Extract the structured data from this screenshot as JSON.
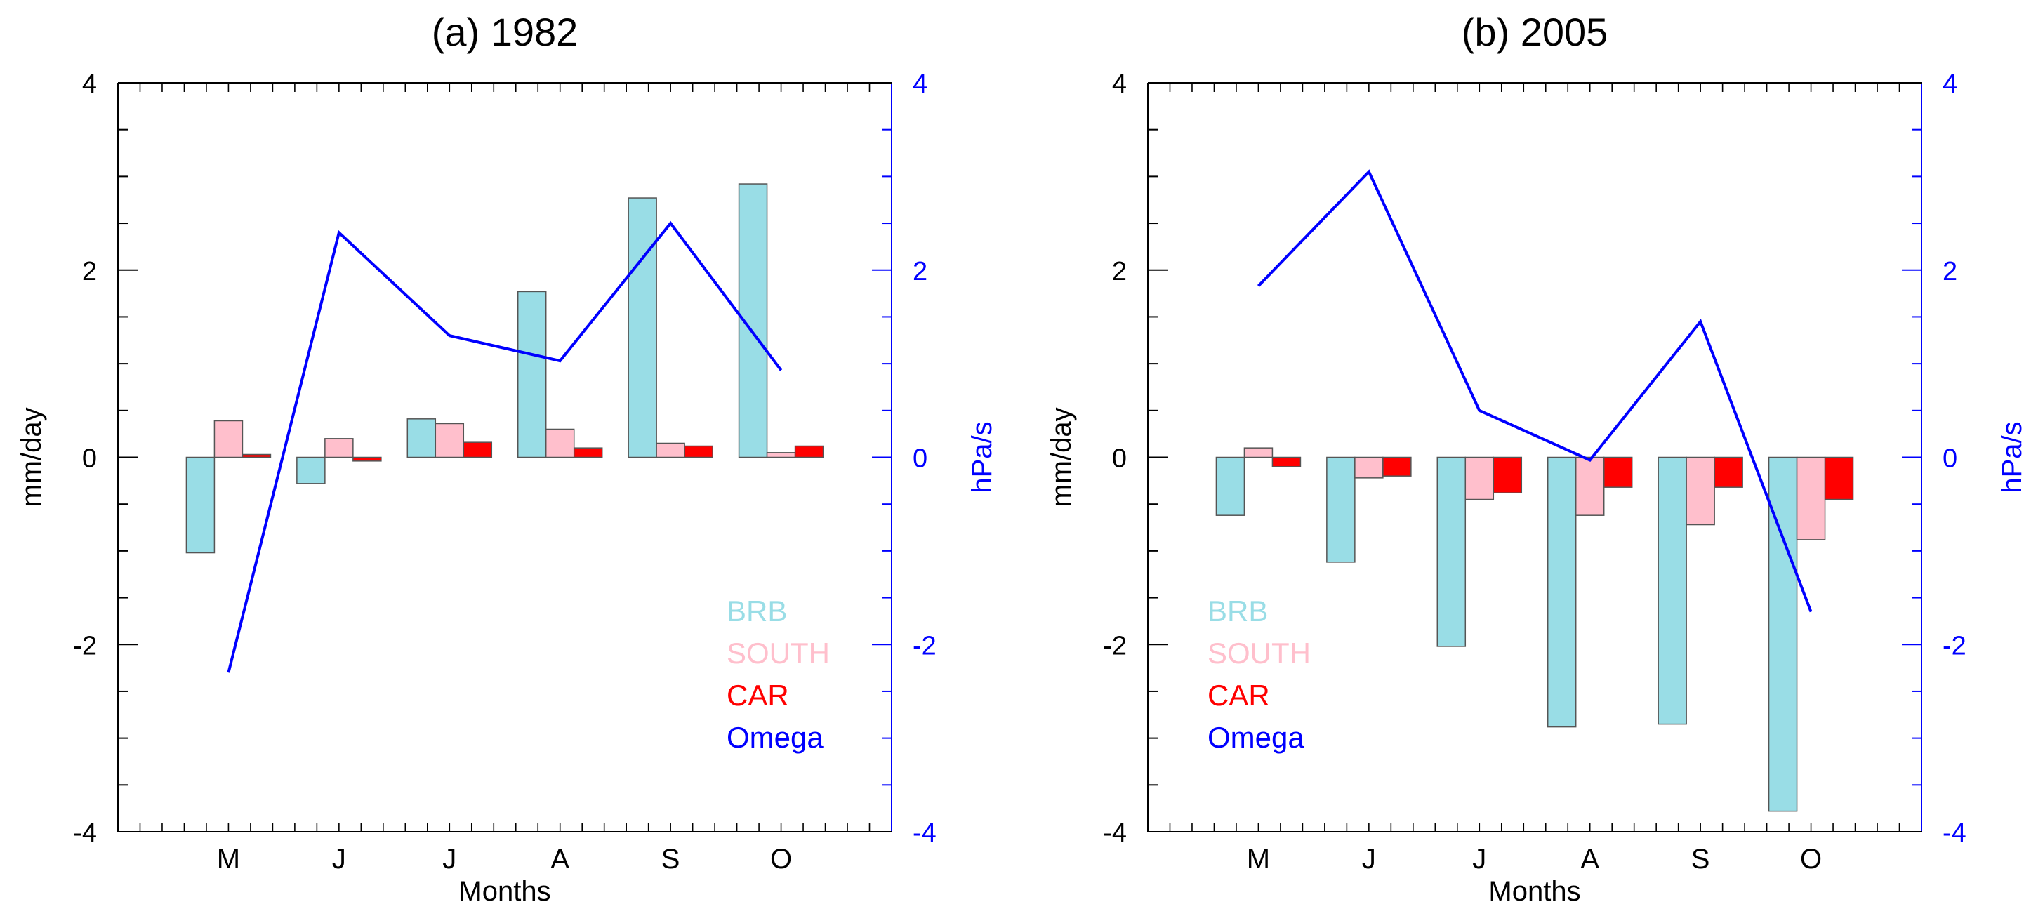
{
  "figure": {
    "colors": {
      "BRB": "#99dde6",
      "SOUTH": "#ffbfcc",
      "CAR": "#ff0000",
      "Omega": "#0000ff",
      "axis": "#000000",
      "bar_edge": "#555555",
      "right_axis": "#0000ff"
    },
    "legend_labels": [
      "BRB",
      "SOUTH",
      "CAR",
      "Omega"
    ]
  },
  "chart_data": [
    {
      "type": "bar",
      "title": "(a) 1982",
      "xlabel": "Months",
      "ylabel": "mm/day",
      "ylabel_right": "hPa/s",
      "categories": [
        "M",
        "J",
        "J",
        "A",
        "S",
        "O"
      ],
      "ylim": [
        -4,
        4
      ],
      "yticks": [
        "4",
        "2",
        "0",
        "-2",
        "-4"
      ],
      "ylim_right": [
        -4,
        4
      ],
      "yticks_right": [
        "4",
        "2",
        "0",
        "-2",
        "-4"
      ],
      "series": [
        {
          "name": "BRB",
          "values": [
            -1.02,
            -0.28,
            0.41,
            1.77,
            2.77,
            2.92
          ]
        },
        {
          "name": "SOUTH",
          "values": [
            0.39,
            0.2,
            0.36,
            0.3,
            0.15,
            0.05
          ]
        },
        {
          "name": "CAR",
          "values": [
            0.03,
            -0.04,
            0.16,
            0.1,
            0.12,
            0.12
          ]
        }
      ],
      "line_series": {
        "name": "Omega",
        "axis": "right",
        "values": [
          -2.3,
          2.4,
          1.3,
          1.03,
          2.5,
          0.93
        ]
      },
      "legend_position": "lower-right"
    },
    {
      "type": "bar",
      "title": "(b) 2005",
      "xlabel": "Months",
      "ylabel": "mm/day",
      "ylabel_right": "hPa/s",
      "categories": [
        "M",
        "J",
        "J",
        "A",
        "S",
        "O"
      ],
      "ylim": [
        -4,
        4
      ],
      "yticks": [
        "4",
        "2",
        "0",
        "-2",
        "-4"
      ],
      "ylim_right": [
        -4,
        4
      ],
      "yticks_right": [
        "4",
        "2",
        "0",
        "-2",
        "-4"
      ],
      "series": [
        {
          "name": "BRB",
          "values": [
            -0.62,
            -1.12,
            -2.02,
            -2.88,
            -2.85,
            -3.78
          ]
        },
        {
          "name": "SOUTH",
          "values": [
            0.1,
            -0.22,
            -0.45,
            -0.62,
            -0.72,
            -0.88
          ]
        },
        {
          "name": "CAR",
          "values": [
            -0.1,
            -0.2,
            -0.38,
            -0.32,
            -0.32,
            -0.45
          ]
        }
      ],
      "line_series": {
        "name": "Omega",
        "axis": "right",
        "values": [
          1.83,
          3.05,
          0.5,
          -0.03,
          1.45,
          -1.65
        ]
      },
      "legend_position": "lower-left"
    }
  ]
}
